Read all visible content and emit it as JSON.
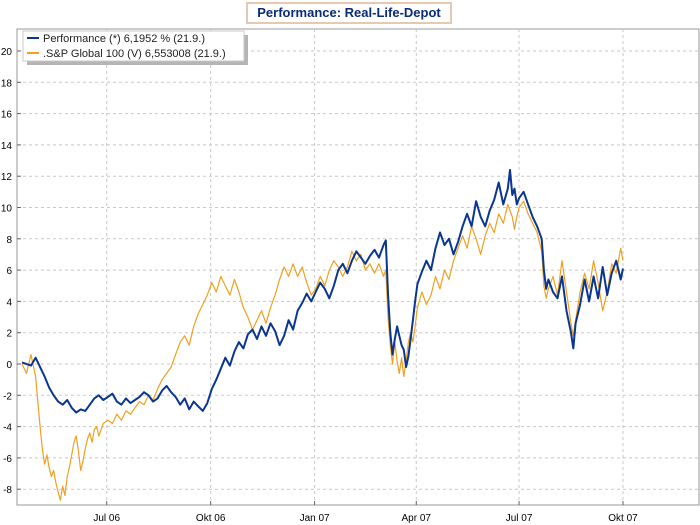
{
  "chart_data": {
    "type": "line",
    "title": "Performance: Real-Life-Depot",
    "xlabel": "",
    "ylabel": "",
    "ylim": [
      -9,
      22
    ],
    "y_ticks": [
      -8,
      -6,
      -4,
      -2,
      0,
      2,
      4,
      6,
      8,
      10,
      12,
      14,
      16,
      18,
      20
    ],
    "x_tick_labels": [
      "Jul 06",
      "Okt 06",
      "Jan 07",
      "Apr 07",
      "Jul 07",
      "Okt 07"
    ],
    "x_tick_days": [
      75,
      167,
      259,
      349,
      440,
      532
    ],
    "x_range_days": [
      0,
      575
    ],
    "grid": true,
    "legend_position": "top-left",
    "colors": {
      "series1": "#0a3690",
      "series2": "#f0a020",
      "title_border": "#e8c8b0",
      "grid": "#c8c8c8"
    },
    "series": [
      {
        "name": "Performance (*) 6,1952 % (21.9.)",
        "color": "#0a3690",
        "points": [
          [
            0,
            0.1
          ],
          [
            8,
            -0.1
          ],
          [
            12,
            0.4
          ],
          [
            16,
            -0.2
          ],
          [
            20,
            -0.8
          ],
          [
            24,
            -1.5
          ],
          [
            28,
            -2.0
          ],
          [
            32,
            -2.4
          ],
          [
            36,
            -2.6
          ],
          [
            40,
            -2.3
          ],
          [
            44,
            -2.8
          ],
          [
            48,
            -3.1
          ],
          [
            52,
            -2.9
          ],
          [
            56,
            -3.0
          ],
          [
            60,
            -2.6
          ],
          [
            64,
            -2.2
          ],
          [
            68,
            -2.0
          ],
          [
            72,
            -2.3
          ],
          [
            76,
            -2.1
          ],
          [
            80,
            -1.9
          ],
          [
            84,
            -2.4
          ],
          [
            88,
            -2.6
          ],
          [
            92,
            -2.2
          ],
          [
            96,
            -2.5
          ],
          [
            100,
            -2.3
          ],
          [
            104,
            -2.1
          ],
          [
            108,
            -1.8
          ],
          [
            112,
            -2.0
          ],
          [
            116,
            -2.4
          ],
          [
            120,
            -2.2
          ],
          [
            124,
            -1.7
          ],
          [
            128,
            -1.4
          ],
          [
            132,
            -1.8
          ],
          [
            136,
            -2.1
          ],
          [
            140,
            -2.6
          ],
          [
            144,
            -2.2
          ],
          [
            148,
            -2.9
          ],
          [
            152,
            -2.4
          ],
          [
            156,
            -2.7
          ],
          [
            160,
            -3.0
          ],
          [
            164,
            -2.5
          ],
          [
            168,
            -1.6
          ],
          [
            172,
            -1.0
          ],
          [
            176,
            -0.3
          ],
          [
            180,
            0.4
          ],
          [
            184,
            -0.1
          ],
          [
            188,
            0.8
          ],
          [
            192,
            1.4
          ],
          [
            196,
            1.0
          ],
          [
            200,
            1.9
          ],
          [
            204,
            2.2
          ],
          [
            208,
            1.6
          ],
          [
            212,
            2.4
          ],
          [
            216,
            1.8
          ],
          [
            220,
            2.6
          ],
          [
            224,
            2.1
          ],
          [
            228,
            1.2
          ],
          [
            232,
            1.8
          ],
          [
            236,
            2.8
          ],
          [
            240,
            2.2
          ],
          [
            244,
            3.4
          ],
          [
            248,
            3.9
          ],
          [
            252,
            4.5
          ],
          [
            256,
            4.0
          ],
          [
            260,
            4.6
          ],
          [
            264,
            5.2
          ],
          [
            268,
            4.8
          ],
          [
            272,
            4.2
          ],
          [
            276,
            5.0
          ],
          [
            280,
            6.0
          ],
          [
            284,
            6.4
          ],
          [
            288,
            5.8
          ],
          [
            292,
            6.6
          ],
          [
            296,
            7.2
          ],
          [
            300,
            6.8
          ],
          [
            304,
            6.4
          ],
          [
            308,
            6.9
          ],
          [
            312,
            7.3
          ],
          [
            316,
            6.8
          ],
          [
            320,
            7.6
          ],
          [
            322,
            7.9
          ],
          [
            324,
            4.5
          ],
          [
            326,
            2.0
          ],
          [
            328,
            0.6
          ],
          [
            330,
            1.6
          ],
          [
            332,
            2.4
          ],
          [
            334,
            1.8
          ],
          [
            336,
            1.2
          ],
          [
            338,
            0.9
          ],
          [
            340,
            -0.2
          ],
          [
            342,
            0.5
          ],
          [
            344,
            1.6
          ],
          [
            346,
            2.8
          ],
          [
            348,
            4.0
          ],
          [
            350,
            5.1
          ],
          [
            354,
            5.9
          ],
          [
            358,
            6.6
          ],
          [
            362,
            6.0
          ],
          [
            366,
            7.4
          ],
          [
            370,
            8.4
          ],
          [
            374,
            7.6
          ],
          [
            378,
            8.0
          ],
          [
            382,
            7.0
          ],
          [
            386,
            7.8
          ],
          [
            390,
            8.8
          ],
          [
            394,
            9.6
          ],
          [
            398,
            8.8
          ],
          [
            402,
            10.4
          ],
          [
            406,
            9.4
          ],
          [
            410,
            8.8
          ],
          [
            414,
            9.8
          ],
          [
            418,
            10.5
          ],
          [
            422,
            11.6
          ],
          [
            426,
            10.2
          ],
          [
            430,
            11.2
          ],
          [
            432,
            12.4
          ],
          [
            434,
            10.8
          ],
          [
            436,
            11.2
          ],
          [
            438,
            10.2
          ],
          [
            440,
            10.6
          ],
          [
            444,
            11.0
          ],
          [
            448,
            10.2
          ],
          [
            452,
            9.4
          ],
          [
            456,
            8.8
          ],
          [
            460,
            8.0
          ],
          [
            462,
            6.0
          ],
          [
            464,
            4.8
          ],
          [
            466,
            5.4
          ],
          [
            470,
            4.6
          ],
          [
            474,
            4.2
          ],
          [
            478,
            5.6
          ],
          [
            482,
            3.4
          ],
          [
            486,
            2.0
          ],
          [
            488,
            1.0
          ],
          [
            490,
            2.6
          ],
          [
            494,
            3.8
          ],
          [
            498,
            5.4
          ],
          [
            502,
            4.0
          ],
          [
            506,
            5.6
          ],
          [
            510,
            4.2
          ],
          [
            514,
            6.2
          ],
          [
            518,
            4.4
          ],
          [
            522,
            5.8
          ],
          [
            526,
            6.6
          ],
          [
            530,
            5.4
          ],
          [
            532,
            6.1
          ]
        ]
      },
      {
        "name": ".S&P Global 100 (V) 6,553008 (21.9.)",
        "color": "#f0a020",
        "points": [
          [
            0,
            0.0
          ],
          [
            4,
            -0.6
          ],
          [
            8,
            0.6
          ],
          [
            12,
            -0.8
          ],
          [
            14,
            -2.4
          ],
          [
            16,
            -4.0
          ],
          [
            18,
            -5.4
          ],
          [
            20,
            -6.4
          ],
          [
            22,
            -5.8
          ],
          [
            24,
            -6.6
          ],
          [
            26,
            -7.2
          ],
          [
            28,
            -6.8
          ],
          [
            30,
            -7.6
          ],
          [
            32,
            -8.2
          ],
          [
            34,
            -8.7
          ],
          [
            36,
            -7.8
          ],
          [
            38,
            -8.4
          ],
          [
            40,
            -7.2
          ],
          [
            42,
            -6.6
          ],
          [
            44,
            -5.8
          ],
          [
            46,
            -5.0
          ],
          [
            48,
            -4.6
          ],
          [
            50,
            -5.6
          ],
          [
            52,
            -6.8
          ],
          [
            54,
            -6.2
          ],
          [
            56,
            -5.4
          ],
          [
            58,
            -4.8
          ],
          [
            60,
            -4.4
          ],
          [
            62,
            -5.0
          ],
          [
            64,
            -4.2
          ],
          [
            66,
            -4.0
          ],
          [
            68,
            -4.6
          ],
          [
            70,
            -4.2
          ],
          [
            72,
            -3.8
          ],
          [
            76,
            -3.6
          ],
          [
            80,
            -3.8
          ],
          [
            84,
            -3.2
          ],
          [
            88,
            -3.6
          ],
          [
            92,
            -3.0
          ],
          [
            96,
            -3.2
          ],
          [
            100,
            -2.8
          ],
          [
            104,
            -2.4
          ],
          [
            108,
            -2.6
          ],
          [
            112,
            -2.0
          ],
          [
            116,
            -2.3
          ],
          [
            120,
            -1.6
          ],
          [
            124,
            -1.0
          ],
          [
            128,
            -0.6
          ],
          [
            132,
            -0.2
          ],
          [
            136,
            0.6
          ],
          [
            140,
            1.4
          ],
          [
            144,
            1.8
          ],
          [
            148,
            1.2
          ],
          [
            152,
            2.4
          ],
          [
            156,
            3.2
          ],
          [
            160,
            3.8
          ],
          [
            164,
            4.4
          ],
          [
            168,
            5.2
          ],
          [
            172,
            4.6
          ],
          [
            176,
            5.6
          ],
          [
            180,
            5.0
          ],
          [
            184,
            4.4
          ],
          [
            188,
            5.4
          ],
          [
            192,
            4.6
          ],
          [
            196,
            3.6
          ],
          [
            200,
            3.0
          ],
          [
            204,
            2.2
          ],
          [
            208,
            2.8
          ],
          [
            212,
            3.4
          ],
          [
            216,
            2.6
          ],
          [
            220,
            3.6
          ],
          [
            224,
            4.4
          ],
          [
            228,
            5.4
          ],
          [
            232,
            6.2
          ],
          [
            236,
            5.6
          ],
          [
            240,
            6.4
          ],
          [
            244,
            5.6
          ],
          [
            248,
            6.2
          ],
          [
            252,
            5.2
          ],
          [
            256,
            4.4
          ],
          [
            260,
            4.8
          ],
          [
            264,
            5.6
          ],
          [
            268,
            5.0
          ],
          [
            272,
            6.0
          ],
          [
            276,
            6.6
          ],
          [
            280,
            6.2
          ],
          [
            284,
            5.6
          ],
          [
            288,
            6.2
          ],
          [
            292,
            7.2
          ],
          [
            296,
            6.6
          ],
          [
            300,
            7.0
          ],
          [
            304,
            6.0
          ],
          [
            308,
            6.4
          ],
          [
            312,
            5.8
          ],
          [
            316,
            6.4
          ],
          [
            320,
            5.6
          ],
          [
            322,
            6.0
          ],
          [
            324,
            3.0
          ],
          [
            326,
            1.2
          ],
          [
            328,
            0.0
          ],
          [
            330,
            1.4
          ],
          [
            332,
            0.2
          ],
          [
            334,
            -0.6
          ],
          [
            336,
            0.4
          ],
          [
            338,
            -0.8
          ],
          [
            340,
            0.2
          ],
          [
            342,
            1.4
          ],
          [
            344,
            2.0
          ],
          [
            346,
            1.4
          ],
          [
            348,
            2.4
          ],
          [
            350,
            3.6
          ],
          [
            354,
            4.6
          ],
          [
            358,
            3.8
          ],
          [
            362,
            4.4
          ],
          [
            366,
            5.6
          ],
          [
            370,
            4.8
          ],
          [
            374,
            6.0
          ],
          [
            378,
            5.4
          ],
          [
            382,
            6.6
          ],
          [
            386,
            7.4
          ],
          [
            390,
            8.2
          ],
          [
            394,
            7.4
          ],
          [
            398,
            8.8
          ],
          [
            402,
            8.0
          ],
          [
            406,
            7.0
          ],
          [
            410,
            8.2
          ],
          [
            414,
            9.0
          ],
          [
            418,
            8.4
          ],
          [
            422,
            9.6
          ],
          [
            426,
            9.0
          ],
          [
            430,
            10.2
          ],
          [
            434,
            9.4
          ],
          [
            436,
            8.6
          ],
          [
            438,
            9.4
          ],
          [
            440,
            10.0
          ],
          [
            444,
            10.4
          ],
          [
            448,
            9.6
          ],
          [
            452,
            9.0
          ],
          [
            456,
            8.4
          ],
          [
            460,
            7.2
          ],
          [
            462,
            5.0
          ],
          [
            464,
            4.2
          ],
          [
            466,
            4.8
          ],
          [
            470,
            5.6
          ],
          [
            474,
            4.4
          ],
          [
            478,
            6.6
          ],
          [
            482,
            4.6
          ],
          [
            486,
            2.6
          ],
          [
            488,
            1.8
          ],
          [
            490,
            2.8
          ],
          [
            494,
            4.6
          ],
          [
            498,
            5.8
          ],
          [
            502,
            4.8
          ],
          [
            506,
            6.6
          ],
          [
            510,
            5.2
          ],
          [
            514,
            3.4
          ],
          [
            518,
            4.6
          ],
          [
            522,
            6.4
          ],
          [
            526,
            5.8
          ],
          [
            530,
            7.4
          ],
          [
            532,
            6.6
          ]
        ]
      }
    ]
  }
}
